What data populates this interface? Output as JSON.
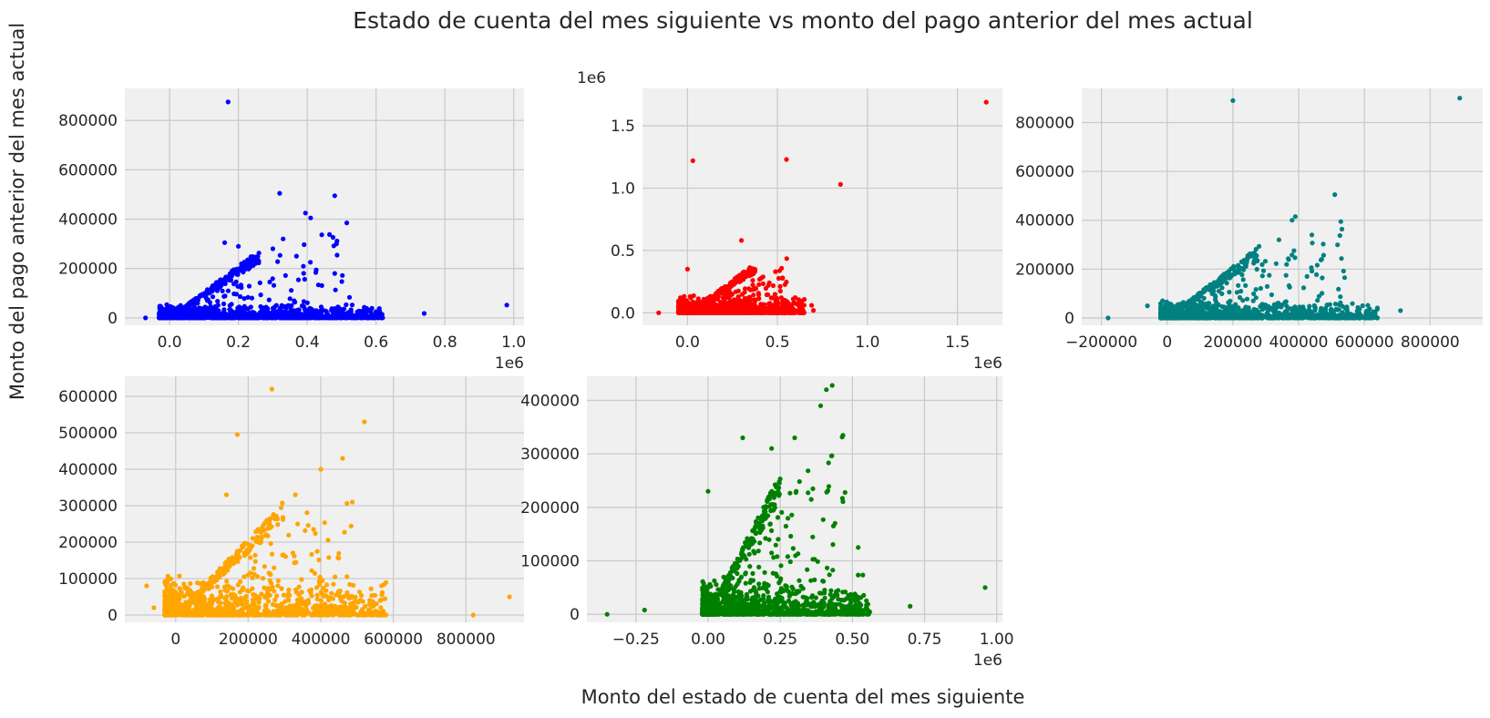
{
  "title": "Estado de cuenta del mes siguiente vs monto del pago anterior del mes actual",
  "xlabel": "Monto del estado de cuenta del mes siguiente",
  "ylabel": "Monto del pago anterior del mes actual",
  "chart_data": [
    {
      "type": "scatter",
      "color": "#0000ff",
      "xlim": [
        -0.13,
        1.03
      ],
      "ylim": [
        -30000,
        930000
      ],
      "xticks": [
        0.0,
        0.2,
        0.4,
        0.6,
        0.8,
        1.0
      ],
      "xtick_labels": [
        "0.0",
        "0.2",
        "0.4",
        "0.6",
        "0.8",
        "1.0"
      ],
      "x_offset_label": "1e6",
      "yticks": [
        0,
        200000,
        400000,
        600000,
        800000
      ],
      "ytick_labels": [
        "0",
        "200000",
        "400000",
        "600000",
        "800000"
      ],
      "y_offset_label": "",
      "grid": true,
      "outliers": [
        [
          0.17,
          875000
        ],
        [
          0.32,
          505000
        ],
        [
          0.48,
          495000
        ],
        [
          0.395,
          425000
        ],
        [
          0.41,
          405000
        ],
        [
          0.485,
          300000
        ],
        [
          0.48,
          180000
        ],
        [
          0.98,
          52000
        ],
        [
          0.74,
          18000
        ],
        [
          -0.07,
          0
        ],
        [
          0.16,
          305000
        ],
        [
          0.2,
          290000
        ],
        [
          0.33,
          320000
        ],
        [
          0.3,
          280000
        ]
      ],
      "cluster": {
        "xmin": -0.03,
        "xmax": 0.62,
        "ymax": 20000,
        "ridge_slope": 1.0,
        "ridge_xmax": 0.26,
        "n": 1100
      }
    },
    {
      "type": "scatter",
      "color": "#ff0000",
      "xlim": [
        -0.25,
        1.75
      ],
      "ylim": [
        -100000,
        1800000
      ],
      "xticks": [
        0.0,
        0.5,
        1.0,
        1.5
      ],
      "xtick_labels": [
        "0.0",
        "0.5",
        "1.0",
        "1.5"
      ],
      "x_offset_label": "1e6",
      "yticks": [
        0.0,
        0.5,
        1.0,
        1.5
      ],
      "ytick_labels": [
        "0.0",
        "0.5",
        "1.0",
        "1.5"
      ],
      "y_offset_label": "1e6",
      "grid": true,
      "outliers": [
        [
          1.66,
          1690000
        ],
        [
          0.55,
          1230000
        ],
        [
          0.03,
          1220000
        ],
        [
          0.85,
          1030000
        ],
        [
          0.3,
          580000
        ],
        [
          0.0,
          350000
        ],
        [
          -0.16,
          0
        ],
        [
          0.69,
          60000
        ],
        [
          0.7,
          20000
        ]
      ],
      "cluster": {
        "xmin": -0.05,
        "xmax": 0.65,
        "ymax": 0.05,
        "ridge_slope": 1.0,
        "ridge_xmax": 0.38,
        "n": 1000
      }
    },
    {
      "type": "scatter",
      "color": "#008080",
      "xlim": [
        -260000,
        960000
      ],
      "ylim": [
        -30000,
        940000
      ],
      "xticks": [
        -200000,
        0,
        200000,
        400000,
        600000,
        800000
      ],
      "xtick_labels": [
        "−200000",
        "0",
        "200000",
        "400000",
        "600000",
        "800000"
      ],
      "x_offset_label": "",
      "yticks": [
        0,
        200000,
        400000,
        600000,
        800000
      ],
      "ytick_labels": [
        "0",
        "200000",
        "400000",
        "600000",
        "800000"
      ],
      "y_offset_label": "",
      "grid": true,
      "outliers": [
        [
          200000,
          890000
        ],
        [
          890000,
          900000
        ],
        [
          510000,
          505000
        ],
        [
          390000,
          415000
        ],
        [
          380000,
          400000
        ],
        [
          440000,
          340000
        ],
        [
          340000,
          320000
        ],
        [
          470000,
          240000
        ],
        [
          540000,
          165000
        ],
        [
          710000,
          30000
        ],
        [
          610000,
          30000
        ],
        [
          -180000,
          0
        ],
        [
          -60000,
          50000
        ]
      ],
      "cluster": {
        "xmin": -20000,
        "xmax": 640000,
        "ymax": 25000,
        "ridge_slope": 1.0,
        "ridge_xmax": 280000,
        "n": 1000
      }
    },
    {
      "type": "scatter",
      "color": "#ffa500",
      "xlim": [
        -140000,
        960000
      ],
      "ylim": [
        -20000,
        655000
      ],
      "xticks": [
        0,
        200000,
        400000,
        600000,
        800000
      ],
      "xtick_labels": [
        "0",
        "200000",
        "400000",
        "600000",
        "800000"
      ],
      "x_offset_label": "",
      "yticks": [
        0,
        100000,
        200000,
        300000,
        400000,
        500000,
        600000
      ],
      "ytick_labels": [
        "0",
        "100000",
        "200000",
        "300000",
        "400000",
        "500000",
        "600000"
      ],
      "y_offset_label": "",
      "grid": true,
      "outliers": [
        [
          265000,
          620000
        ],
        [
          520000,
          530000
        ],
        [
          170000,
          495000
        ],
        [
          460000,
          430000
        ],
        [
          400000,
          400000
        ],
        [
          140000,
          330000
        ],
        [
          330000,
          330000
        ],
        [
          380000,
          235000
        ],
        [
          920000,
          50000
        ],
        [
          820000,
          0
        ],
        [
          -80000,
          80000
        ],
        [
          -60000,
          20000
        ]
      ],
      "cluster": {
        "xmin": -30000,
        "xmax": 580000,
        "ymax": 40000,
        "ridge_slope": 1.0,
        "ridge_xmax": 300000,
        "n": 1000
      }
    },
    {
      "type": "scatter",
      "color": "#008000",
      "xlim": [
        -0.42,
        1.02
      ],
      "ylim": [
        -15000,
        445000
      ],
      "xticks": [
        -0.25,
        0.0,
        0.25,
        0.5,
        0.75,
        1.0
      ],
      "xtick_labels": [
        "−0.25",
        "0.00",
        "0.25",
        "0.50",
        "0.75",
        "1.00"
      ],
      "x_offset_label": "1e6",
      "yticks": [
        0,
        100000,
        200000,
        300000,
        400000
      ],
      "ytick_labels": [
        "0",
        "100000",
        "200000",
        "300000",
        "400000"
      ],
      "y_offset_label": "",
      "grid": true,
      "outliers": [
        [
          0.43,
          428000
        ],
        [
          0.41,
          420000
        ],
        [
          0.39,
          390000
        ],
        [
          0.3,
          330000
        ],
        [
          0.12,
          330000
        ],
        [
          0.22,
          310000
        ],
        [
          0.0,
          230000
        ],
        [
          0.52,
          125000
        ],
        [
          0.96,
          50000
        ],
        [
          0.7,
          15000
        ],
        [
          -0.35,
          0
        ],
        [
          -0.22,
          8000
        ]
      ],
      "cluster": {
        "xmin": -0.02,
        "xmax": 0.56,
        "ymax": 25000,
        "ridge_slope": 1.0,
        "ridge_xmax": 0.25,
        "n": 1100
      }
    }
  ]
}
